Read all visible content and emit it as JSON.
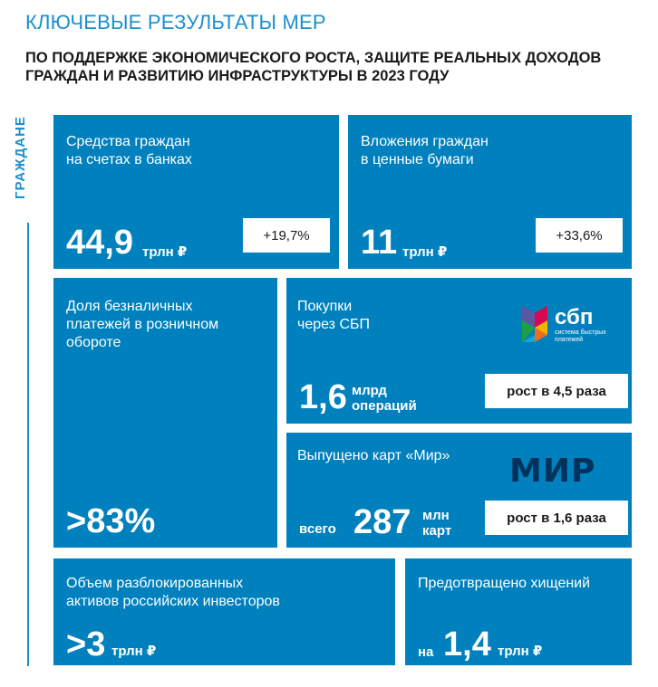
{
  "header": {
    "title": "КЛЮЧЕВЫЕ РЕЗУЛЬТАТЫ МЕР",
    "subtitle": "ПО ПОДДЕРЖКЕ ЭКОНОМИЧЕСКОГО РОСТА, ЗАЩИТЕ РЕАЛЬНЫХ ДОХОДОВ ГРАЖДАН И РАЗВИТИЮ ИНФРАСТРУКТУРЫ В 2023 ГОДУ"
  },
  "side_label": "ГРАЖДАНЕ",
  "cards": {
    "deposits": {
      "label_1": "Средства граждан",
      "label_2": "на счетах в банках",
      "value": "44,9",
      "unit": "трлн ₽",
      "change": "+19,7%"
    },
    "securities": {
      "label_1": "Вложения граждан",
      "label_2": "в ценные бумаги",
      "value": "11",
      "unit": "трлн ₽",
      "change": "+33,6%"
    },
    "cashless": {
      "label_1": "Доля безналичных",
      "label_2": "платежей в розничном",
      "label_3": "обороте",
      "value": ">83%"
    },
    "sbp": {
      "label_1": "Покупки",
      "label_2": "через СБП",
      "value": "1,6",
      "unit_1": "млрд",
      "unit_2": "операций",
      "change": "рост в 4,5 раза",
      "logo_text": "сбп",
      "logo_sub_1": "система быстрых",
      "logo_sub_2": "платежей"
    },
    "mir": {
      "label": "Выпущено карт «Мир»",
      "prefix": "всего",
      "value": "287",
      "unit_1": "млн",
      "unit_2": "карт",
      "change": "рост в 1,6 раза",
      "logo_text": "МИР"
    },
    "unblocked": {
      "label_1": "Объем разблокированных",
      "label_2": "активов российских инвесторов",
      "value": ">3",
      "unit": "трлн ₽"
    },
    "theft": {
      "label": "Предотвращено хищений",
      "prefix": "на",
      "value": "1,4",
      "unit": "трлн ₽"
    }
  },
  "colors": {
    "card_bg": "#0080bc",
    "accent": "#1a8fcf",
    "mir_logo": "#00325c"
  }
}
